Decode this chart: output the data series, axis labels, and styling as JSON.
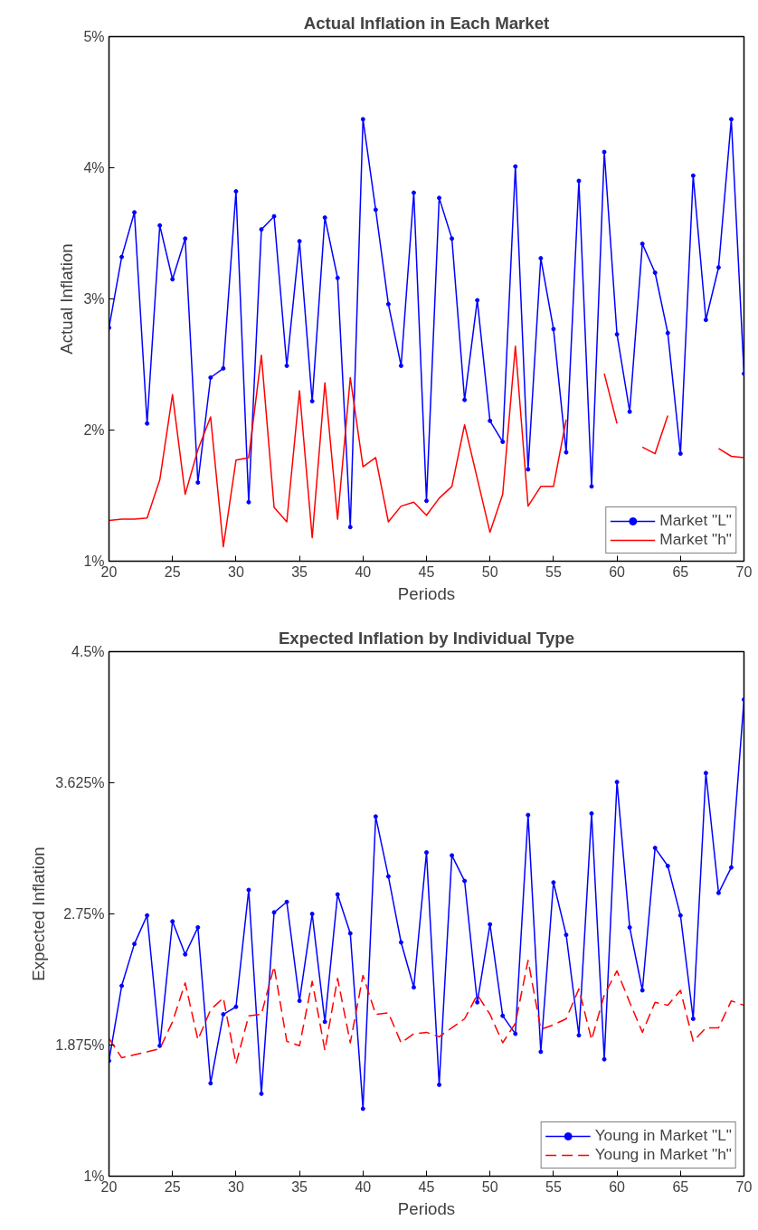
{
  "chart_data": [
    {
      "type": "line",
      "title": "Actual Inflation in Each Market",
      "xlabel": "Periods",
      "ylabel": "Actual Inflation",
      "x": [
        20,
        21,
        22,
        23,
        24,
        25,
        26,
        27,
        28,
        29,
        30,
        31,
        32,
        33,
        34,
        35,
        36,
        37,
        38,
        39,
        40,
        41,
        42,
        43,
        44,
        45,
        46,
        47,
        48,
        49,
        50,
        51,
        52,
        53,
        54,
        55,
        56,
        57,
        58,
        59,
        60,
        61,
        62,
        63,
        64,
        65,
        66,
        67,
        68,
        69,
        70
      ],
      "series": [
        {
          "name": "Market \"L\"",
          "color": "#0000ff",
          "marker": "circle",
          "line_style": "solid",
          "values": [
            2.78,
            3.32,
            3.66,
            2.05,
            3.56,
            3.15,
            3.46,
            1.6,
            2.4,
            2.47,
            3.82,
            1.45,
            3.53,
            3.63,
            2.49,
            3.44,
            2.22,
            3.62,
            3.16,
            1.26,
            4.37,
            3.68,
            2.96,
            2.49,
            3.81,
            1.46,
            3.77,
            3.46,
            2.23,
            2.99,
            2.07,
            1.91,
            4.01,
            1.7,
            3.31,
            2.77,
            1.83,
            3.9,
            1.57,
            4.12,
            2.73,
            2.14,
            3.42,
            3.2,
            2.74,
            1.82,
            3.94,
            2.84,
            3.24,
            4.37,
            2.43
          ]
        },
        {
          "name": "Market \"h\"",
          "color": "#ff0000",
          "marker": "none",
          "line_style": "solid",
          "values": [
            1.31,
            1.32,
            1.32,
            1.33,
            1.62,
            2.27,
            1.51,
            1.85,
            2.1,
            1.11,
            1.77,
            1.79,
            2.57,
            1.41,
            1.3,
            2.3,
            1.18,
            2.36,
            1.32,
            2.4,
            1.72,
            1.79,
            1.3,
            1.42,
            1.45,
            1.35,
            1.48,
            1.57,
            2.04,
            1.63,
            1.22,
            1.51,
            2.64,
            1.42,
            1.57,
            1.57,
            2.08,
            null,
            null,
            2.43,
            2.05,
            null,
            1.87,
            1.82,
            2.11,
            null,
            null,
            null,
            1.86,
            1.8,
            1.79
          ]
        }
      ],
      "xlim": [
        20,
        70
      ],
      "xticks": [
        20,
        25,
        30,
        35,
        40,
        45,
        50,
        55,
        60,
        65,
        70
      ],
      "ylim": [
        1,
        5
      ],
      "yticks": [
        {
          "value": 1,
          "label": "1%"
        },
        {
          "value": 2,
          "label": "2%"
        },
        {
          "value": 3,
          "label": "3%"
        },
        {
          "value": 4,
          "label": "4%"
        },
        {
          "value": 5,
          "label": "5%"
        }
      ],
      "grid": false,
      "legend": "bottom right"
    },
    {
      "type": "line",
      "title": "Expected Inflation by Individual Type",
      "xlabel": "Periods",
      "ylabel": "Expected Inflation",
      "x": [
        20,
        21,
        22,
        23,
        24,
        25,
        26,
        27,
        28,
        29,
        30,
        31,
        32,
        33,
        34,
        35,
        36,
        37,
        38,
        39,
        40,
        41,
        42,
        43,
        44,
        45,
        46,
        47,
        48,
        49,
        50,
        51,
        52,
        53,
        54,
        55,
        56,
        57,
        58,
        59,
        60,
        61,
        62,
        63,
        64,
        65,
        66,
        67,
        68,
        69,
        70
      ],
      "series": [
        {
          "name": "Young in Market \"L\"",
          "color": "#0000ff",
          "marker": "circle",
          "line_style": "solid",
          "values": [
            1.77,
            2.27,
            2.55,
            2.74,
            1.87,
            2.7,
            2.48,
            2.66,
            1.62,
            2.08,
            2.13,
            2.91,
            1.55,
            2.76,
            2.83,
            2.17,
            2.75,
            2.03,
            2.88,
            2.62,
            1.45,
            3.4,
            3.0,
            2.56,
            2.26,
            3.16,
            1.61,
            3.14,
            2.97,
            2.16,
            2.68,
            2.07,
            1.95,
            3.41,
            1.83,
            2.96,
            2.61,
            1.94,
            3.42,
            1.78,
            3.63,
            2.66,
            2.24,
            3.19,
            3.07,
            2.74,
            2.05,
            3.69,
            2.89,
            3.06,
            4.18
          ]
        },
        {
          "name": "Young in Market \"h\"",
          "color": "#ff0000",
          "marker": "none",
          "line_style": "dashed",
          "values": [
            1.92,
            1.79,
            1.81,
            1.83,
            1.85,
            2.03,
            2.29,
            1.91,
            2.11,
            2.19,
            1.75,
            2.07,
            2.08,
            2.4,
            1.9,
            1.87,
            2.3,
            1.84,
            2.32,
            1.89,
            2.34,
            2.08,
            2.09,
            1.89,
            1.95,
            1.96,
            1.93,
            1.99,
            2.05,
            2.21,
            2.08,
            1.89,
            2.02,
            2.44,
            1.98,
            2.01,
            2.05,
            2.25,
            1.91,
            2.21,
            2.37,
            2.16,
            1.96,
            2.16,
            2.14,
            2.24,
            1.9,
            1.99,
            1.99,
            2.17,
            2.14
          ]
        }
      ],
      "xlim": [
        20,
        70
      ],
      "xticks": [
        20,
        25,
        30,
        35,
        40,
        45,
        50,
        55,
        60,
        65,
        70
      ],
      "ylim": [
        1,
        4.5
      ],
      "yticks": [
        {
          "value": 1,
          "label": "1%"
        },
        {
          "value": 1.875,
          "label": "1.875%"
        },
        {
          "value": 2.75,
          "label": "2.75%"
        },
        {
          "value": 3.625,
          "label": "3.625%"
        },
        {
          "value": 4.5,
          "label": "4.5%"
        }
      ],
      "grid": false,
      "legend": "bottom right"
    }
  ]
}
